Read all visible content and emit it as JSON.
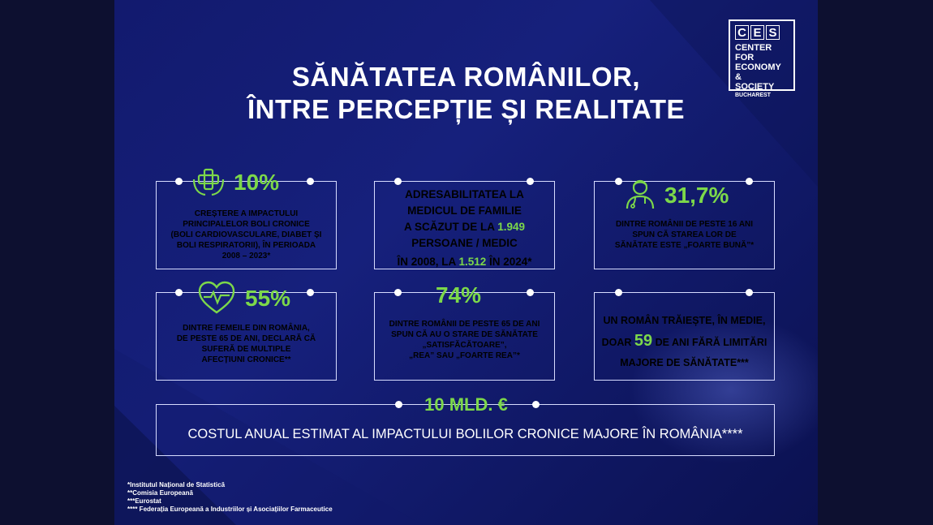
{
  "title": {
    "line1": "SĂNĂTATEA ROMÂNILOR,",
    "line2": "ÎNTRE PERCEPȚIE ȘI REALITATE"
  },
  "logo": {
    "letters": [
      "C",
      "E",
      "S"
    ],
    "line1": "CENTER FOR",
    "line2": "ECONOMY &",
    "line3": "SOCIETY",
    "line4": "BUCHAREST"
  },
  "cards": {
    "chronic": {
      "stat": "10%",
      "text": [
        "CREȘTERE A IMPACTULUI",
        "PRINCIPALELOR BOLI CRONICE",
        "(BOLI CARDIOVASCULARE, DIABET ȘI",
        "BOLI RESPIRATORII), ÎN PERIOADA",
        "2008 – 2023*"
      ],
      "icon": "medical-cross-hands-icon"
    },
    "family_doctor": {
      "line1": "ADRESABILITATEA LA",
      "line2": "MEDICUL DE FAMILIE",
      "line3_prefix": "A SCĂZUT DE LA ",
      "value_2008": "1.949",
      "line4": "PERSOANE / MEDIC",
      "line5_prefix": "ÎN 2008, LA ",
      "value_2024": "1.512",
      "line5_suffix": " ÎN 2024*"
    },
    "very_good": {
      "stat": "31,7%",
      "text": [
        "DINTRE ROMÂNII DE PESTE 16 ANI",
        "SPUN CĂ STAREA LOR DE",
        "SĂNĂTATE ESTE „FOARTE BUNĂ”*"
      ],
      "icon": "doctor-icon"
    },
    "women": {
      "stat": "55%",
      "text": [
        "DINTRE FEMEILE DIN ROMÂNIA,",
        "DE PESTE 65 DE ANI, DECLARĂ CĂ",
        "SUFERĂ DE MULTIPLE",
        "AFECȚIUNI CRONICE**"
      ],
      "icon": "heart-pulse-icon"
    },
    "satisfactory": {
      "stat": "74%",
      "text": [
        "DINTRE ROMÂNII DE PESTE 65 DE ANI",
        "SPUN CĂ AU O STARE DE SĂNĂTATE",
        "„SATISFĂCĂTOARE”,",
        "„REA” SAU „FOARTE REA”*"
      ]
    },
    "healthy_years": {
      "line1": "UN ROMÂN TRĂIEȘTE, ÎN MEDIE,",
      "line2_prefix": "DOAR ",
      "value": "59",
      "line2_suffix": " DE ANI FĂRĂ LIMITĂRI",
      "line3": "MAJORE DE SĂNĂTATE***"
    },
    "cost": {
      "stat": "10 MLD. €",
      "text": "COSTUL ANUAL ESTIMAT AL IMPACTULUI BOLILOR CRONICE MAJORE ÎN ROMÂNIA****"
    }
  },
  "footnotes": [
    "*Institutul Național de Statistică",
    "**Comisia Europeană",
    "***Eurostat",
    "**** Federația Europeană a Industriilor și Asociațiilor Farmaceutice"
  ],
  "colors": {
    "accent": "#7cd84a",
    "background": "#131c72",
    "text": "#ffffff"
  }
}
